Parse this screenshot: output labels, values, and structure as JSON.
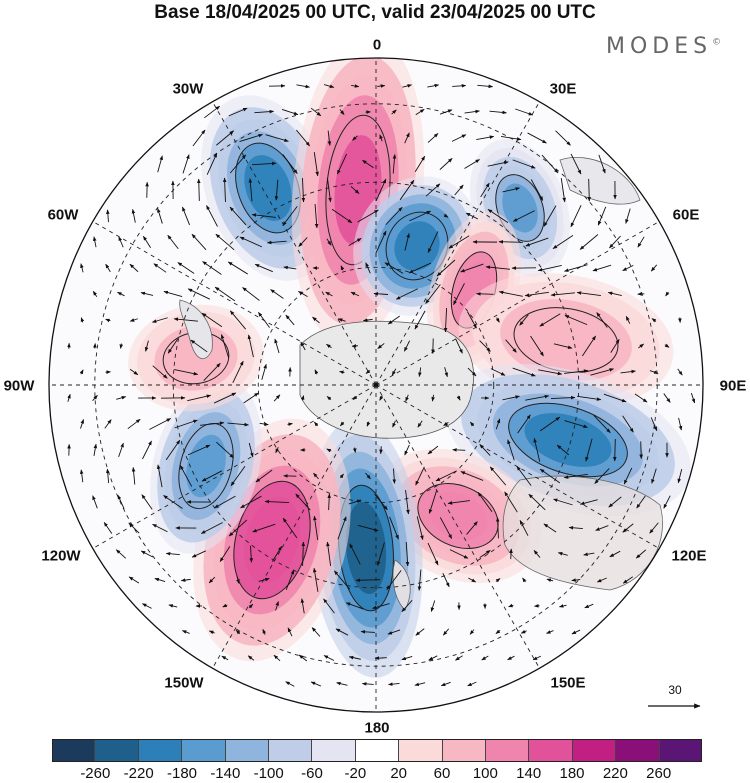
{
  "title": "Base 18/04/2025 00 UTC, valid 23/04/2025 00 UTC",
  "brand": {
    "name": "MODES",
    "mark": "©"
  },
  "map": {
    "projection": "south polar stereographic",
    "longitude_labels": [
      "0",
      "30E",
      "60E",
      "90E",
      "120E",
      "150E",
      "180",
      "150W",
      "120W",
      "90W",
      "60W",
      "30W"
    ],
    "graticule": "dashed",
    "coastlines": true,
    "field": "shaded anomaly",
    "vectors": "wind arrows"
  },
  "reference_vector": {
    "label": "30"
  },
  "colorbar": {
    "ticks": [
      "-260",
      "-220",
      "-180",
      "-140",
      "-100",
      "-60",
      "-20",
      "20",
      "60",
      "100",
      "140",
      "180",
      "220",
      "260"
    ],
    "colors": [
      "#1b3a5c",
      "#1f5f8b",
      "#2c7fb8",
      "#5a9bd0",
      "#8fb4dd",
      "#bfcde8",
      "#e4e4f2",
      "#ffffff",
      "#fbdada",
      "#f7b7c3",
      "#ef85ad",
      "#e2529b",
      "#c21f82",
      "#8b0f78",
      "#5a1575"
    ]
  },
  "anomalies": [
    {
      "kind": "negative",
      "level": -180
    },
    {
      "kind": "positive",
      "level": 160
    },
    {
      "kind": "negative",
      "level": -200
    },
    {
      "kind": "negative",
      "level": -140
    },
    {
      "kind": "positive",
      "level": 120
    },
    {
      "kind": "positive",
      "level": 100
    },
    {
      "kind": "negative",
      "level": -180
    },
    {
      "kind": "positive",
      "level": 140
    },
    {
      "kind": "negative",
      "level": -240
    },
    {
      "kind": "positive",
      "level": 180
    },
    {
      "kind": "negative",
      "level": -160
    },
    {
      "kind": "positive",
      "level": 100
    }
  ]
}
